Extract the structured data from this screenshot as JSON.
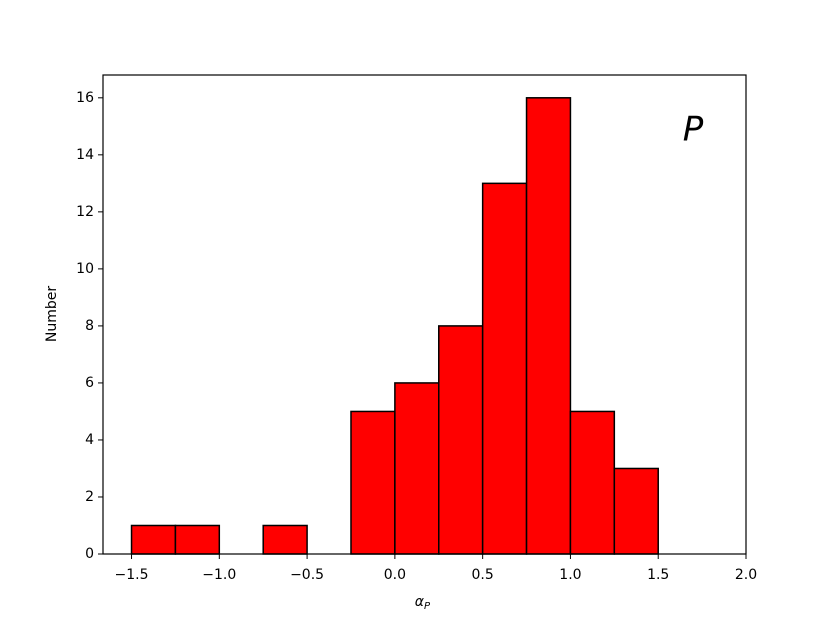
{
  "chart_data": {
    "type": "histogram",
    "xlabel": "α",
    "xlabel_subscript": "P",
    "ylabel": "Number",
    "annotation": "P",
    "bins": [
      -1.5,
      -1.25,
      -1.0,
      -0.75,
      -0.5,
      -0.25,
      0.0,
      0.25,
      0.5,
      0.75,
      1.0,
      1.25,
      1.5,
      1.75
    ],
    "counts": [
      1,
      1,
      0,
      1,
      0,
      5,
      6,
      8,
      13,
      16,
      5,
      3,
      0
    ],
    "color": "#ff0000",
    "edgecolor": "#000000",
    "xlim": [
      -1.6625,
      2.0
    ],
    "xticks": [
      {
        "value": -1.5,
        "label": "−1.5"
      },
      {
        "value": -1.0,
        "label": "−1.0"
      },
      {
        "value": -0.5,
        "label": "−0.5"
      },
      {
        "value": 0.0,
        "label": "0.0"
      },
      0.5,
      {
        "value": 1.0,
        "label": "1.0"
      },
      1.5,
      {
        "value": 2.0,
        "label": "2.0"
      }
    ],
    "ylim": [
      0,
      16.8
    ],
    "yticks": [
      0,
      2,
      4,
      6,
      8,
      10,
      12,
      14,
      16
    ],
    "grid": false
  }
}
